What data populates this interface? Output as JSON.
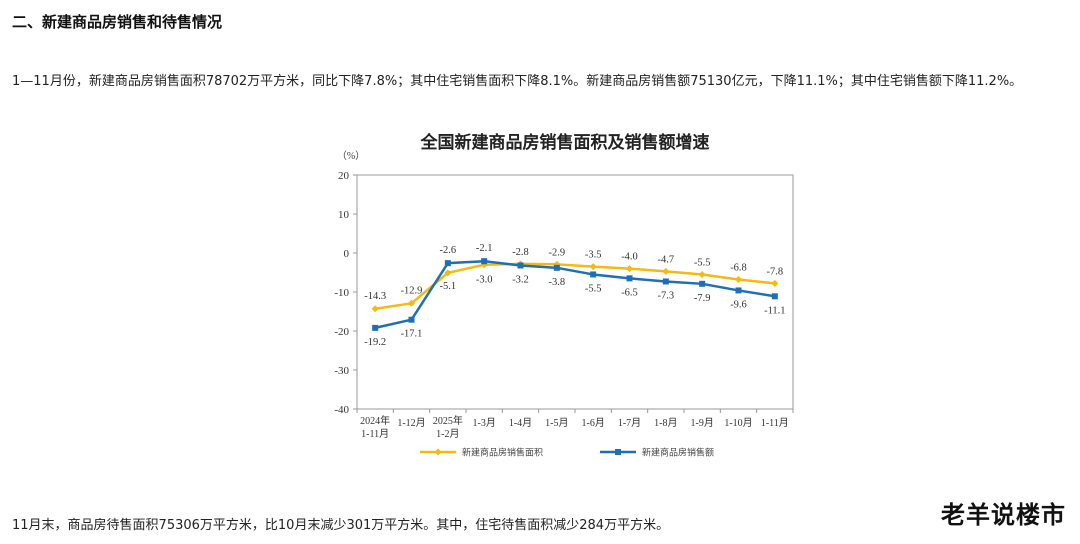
{
  "section": {
    "title": "二、新建商品房销售和待售情况"
  },
  "paragraphs": {
    "p1": "1—11月份，新建商品房销售面积78702万平方米，同比下降7.8%；其中住宅销售面积下降8.1%。新建商品房销售额75130亿元，下降11.1%；其中住宅销售额下降11.2%。",
    "p2": "11月末，商品房待售面积75306万平方米，比10月末减少301万平方米。其中，住宅待售面积减少284万平方米。"
  },
  "watermark": "老羊说楼市",
  "chart_data": {
    "type": "line",
    "title": "全国新建商品房销售面积及销售额增速",
    "ylabel": "（%）",
    "ylim": [
      -40,
      20
    ],
    "yticks": [
      20,
      10,
      0,
      -10,
      -20,
      -30,
      -40
    ],
    "grid": false,
    "legend_position": "bottom",
    "categories": [
      [
        "2024年",
        "1-11月"
      ],
      [
        "1-12月"
      ],
      [
        "2025年",
        "1-2月"
      ],
      [
        "1-3月"
      ],
      [
        "1-4月"
      ],
      [
        "1-5月"
      ],
      [
        "1-6月"
      ],
      [
        "1-7月"
      ],
      [
        "1-8月"
      ],
      [
        "1-9月"
      ],
      [
        "1-10月"
      ],
      [
        "1-11月"
      ]
    ],
    "series": [
      {
        "name": "新建商品房销售面积",
        "color": "#F5B90F",
        "values": [
          -14.3,
          -12.9,
          -5.1,
          -3.0,
          -2.8,
          -2.9,
          -3.5,
          -4.0,
          -4.7,
          -5.5,
          -6.8,
          -7.8
        ],
        "labels": [
          "-14.3",
          "-12.9",
          "-5.1",
          "-3.0",
          "-2.8",
          "-2.9",
          "-3.5",
          "-4.0",
          "-4.7",
          "-5.5",
          "-6.8",
          "-7.8"
        ]
      },
      {
        "name": "新建商品房销售额",
        "color": "#1F6FB5",
        "values": [
          -19.2,
          -17.1,
          -2.6,
          -2.1,
          -3.2,
          -3.8,
          -5.5,
          -6.5,
          -7.3,
          -7.9,
          -9.6,
          -11.1
        ],
        "labels": [
          "-19.2",
          "-17.1",
          "-2.6",
          "-2.1",
          "-3.2",
          "-3.8",
          "-5.5",
          "-6.5",
          "-7.3",
          "-7.9",
          "-9.6",
          "-11.1"
        ]
      }
    ]
  }
}
